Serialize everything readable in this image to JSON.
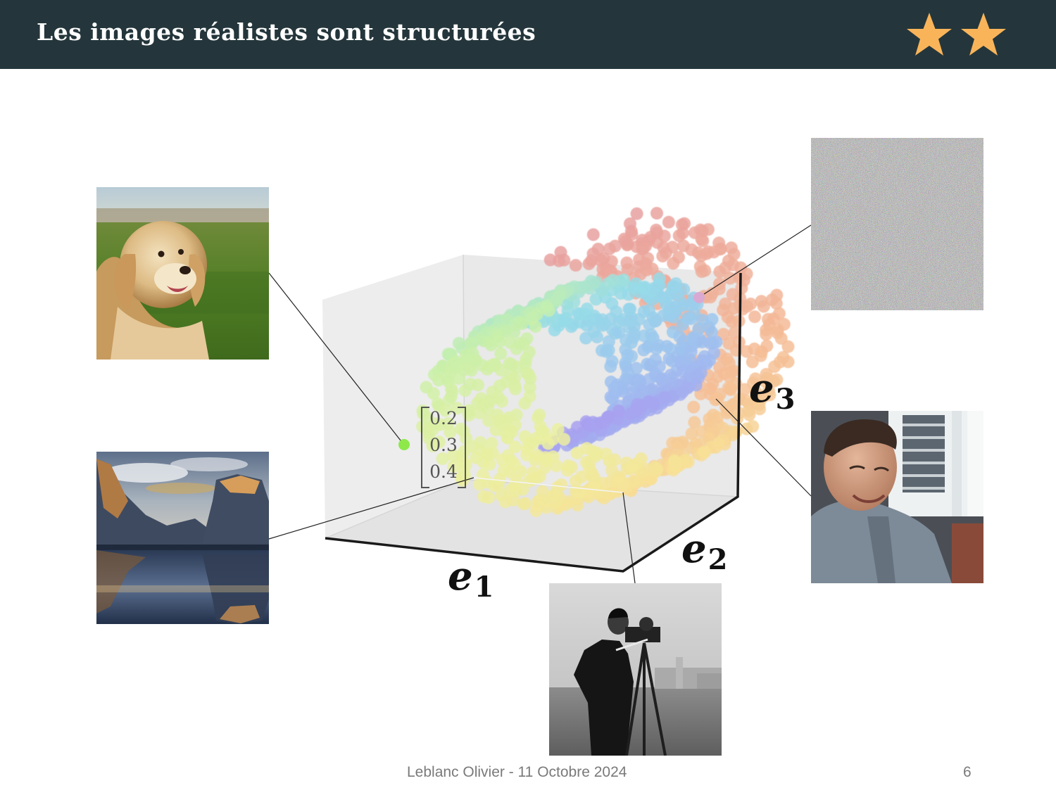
{
  "header": {
    "title": "Les images réalistes sont structurées",
    "star_color": "#f9b45a",
    "star_count": 2
  },
  "diagram": {
    "axes": {
      "e1": "e",
      "e1_sub": "1",
      "e2": "e",
      "e2_sub": "2",
      "e3": "e",
      "e3_sub": "3"
    },
    "vector": [
      "0.2",
      "0.3",
      "0.4"
    ],
    "highlight_point_color": "#8ee84a",
    "noise_point_color": "#d9a9d4"
  },
  "images": [
    {
      "name": "dog-photo"
    },
    {
      "name": "lake-mountain-photo"
    },
    {
      "name": "cameraman-photo"
    },
    {
      "name": "random-noise-image"
    },
    {
      "name": "young-man-photo"
    }
  ],
  "footer": {
    "author_date": "Leblanc Olivier  - 11 Octobre 2024",
    "page_number": "6"
  }
}
